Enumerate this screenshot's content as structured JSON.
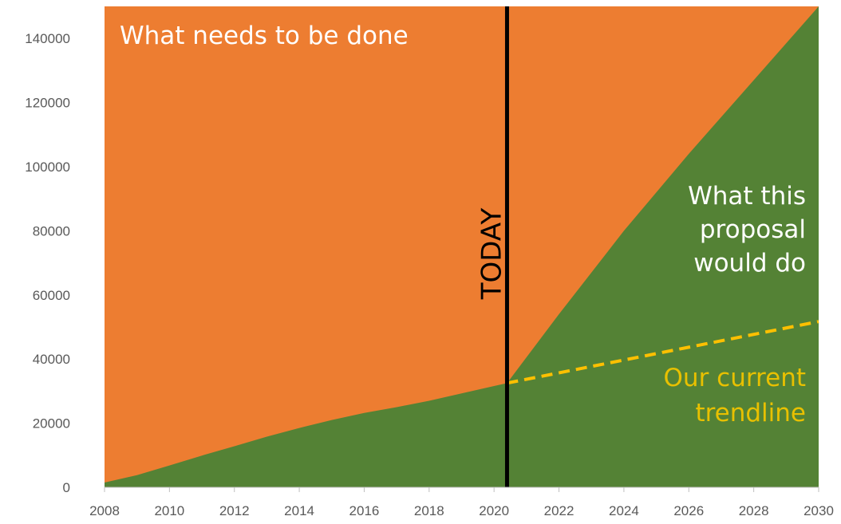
{
  "chart_data": {
    "type": "area",
    "x_ticks": [
      "2008",
      "2010",
      "2012",
      "2014",
      "2016",
      "2018",
      "2020",
      "2022",
      "2024",
      "2026",
      "2028",
      "2030"
    ],
    "y_ticks": [
      "0",
      "20000",
      "40000",
      "60000",
      "80000",
      "100000",
      "120000",
      "140000"
    ],
    "xlim": [
      2008,
      2030
    ],
    "ylim": [
      0,
      150000
    ],
    "grid": false,
    "legend": "none",
    "today_year": 2020.4,
    "series": [
      {
        "color": "#ed7d31",
        "x": [
          2008,
          2030
        ],
        "y": [
          150000,
          150000
        ]
      },
      {
        "color": "#548235",
        "x": [
          2008,
          2009,
          2010,
          2011,
          2012,
          2013,
          2014,
          2015,
          2016,
          2017,
          2018,
          2019,
          2020,
          2020.4,
          2022,
          2024,
          2026,
          2028,
          2030
        ],
        "y": [
          1500,
          3800,
          6800,
          9900,
          12800,
          15800,
          18500,
          21000,
          23200,
          25000,
          27000,
          29300,
          31600,
          32500,
          54000,
          80000,
          104000,
          127000,
          150000
        ]
      },
      {
        "color": "#ffc000",
        "dashed": true,
        "x": [
          2020.4,
          2030
        ],
        "y": [
          32500,
          51700
        ]
      }
    ],
    "annotations": {
      "top": "What needs to be done",
      "proposal": [
        "What this",
        "proposal",
        "would do"
      ],
      "trend": [
        "Our current",
        "trendline"
      ],
      "today": "TODAY"
    }
  }
}
